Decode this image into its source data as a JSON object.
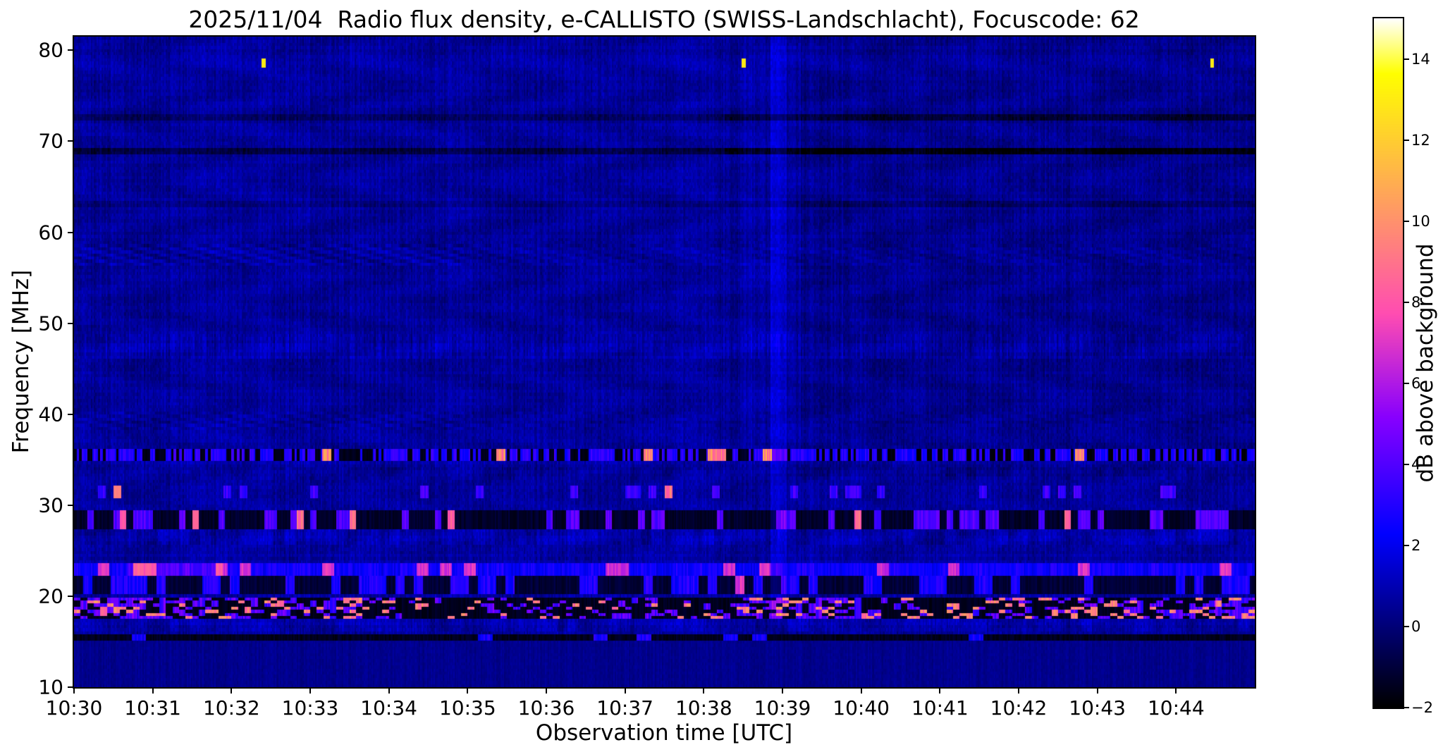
{
  "chart_data": {
    "type": "heatmap",
    "title": "2025/11/04  Radio flux density, e-CALLISTO (SWISS-Landschlacht), Focuscode: 62",
    "xlabel": "Observation time [UTC]",
    "ylabel": "Frequency [MHz]",
    "x_start": "10:30",
    "x_end": "10:45",
    "x_tick_labels": [
      "10:30",
      "10:31",
      "10:32",
      "10:33",
      "10:34",
      "10:35",
      "10:36",
      "10:37",
      "10:38",
      "10:39",
      "10:40",
      "10:41",
      "10:42",
      "10:43",
      "10:44"
    ],
    "y_ticks": [
      10,
      20,
      30,
      40,
      50,
      60,
      70,
      80
    ],
    "y_range": [
      10,
      81.5
    ],
    "grid": false,
    "colorbar": {
      "label": "dB above background",
      "ticks": [
        -2,
        0,
        2,
        4,
        6,
        8,
        10,
        12,
        14
      ],
      "tick_labels": [
        "−2",
        "0",
        "2",
        "4",
        "6",
        "8",
        "10",
        "12",
        "14"
      ],
      "vmin": -2,
      "vmax": 15,
      "colormap": "gnuplot2"
    },
    "features": {
      "background_db": 0.5,
      "bright_spots": [
        {
          "t_frac": 0.16,
          "freq_mhz": 78.6,
          "db": 13,
          "time": "10:32.4"
        },
        {
          "t_frac": 0.567,
          "freq_mhz": 78.6,
          "db": 13,
          "time": "10:38.5"
        },
        {
          "t_frac": 0.963,
          "freq_mhz": 78.6,
          "db": 13,
          "time": "10:44.4"
        }
      ],
      "dark_horizontal_lines_mhz": [
        72.6,
        68.8,
        15.5
      ],
      "vertical_streaks": [
        {
          "t0": 0.59,
          "t1": 0.603,
          "f_min": 18,
          "add": 0.9
        },
        {
          "t0": 0.565,
          "t1": 0.615,
          "f_min": 35,
          "add": 0.3
        },
        {
          "t0": 0.578,
          "t1": 1.0,
          "f_min": 33,
          "add": -0.18
        }
      ],
      "bands": [
        {
          "lo": 77.9,
          "hi": 79.3,
          "mode": "add",
          "amt": 0.15
        },
        {
          "lo": 72.3,
          "hi": 72.9,
          "mode": "darkline",
          "depth": 1.1
        },
        {
          "lo": 68.5,
          "hi": 69.15,
          "mode": "darkline",
          "depth": 1.7
        },
        {
          "lo": 62.8,
          "hi": 63.3,
          "mode": "darkline",
          "depth": 0.5
        },
        {
          "lo": 56.4,
          "hi": 58.6,
          "mode": "wave",
          "amp": 0.5
        },
        {
          "lo": 46.2,
          "hi": 48.9,
          "mode": "vstripe",
          "amp": 0.8
        },
        {
          "lo": 38.4,
          "hi": 40.3,
          "mode": "wave",
          "amp": 0.35
        },
        {
          "lo": 35.0,
          "hi": 36.05,
          "mode": "speckle",
          "darkProb": 0.42,
          "dark": -1.6,
          "lite": 2.3,
          "hotProb": 0.05,
          "hot": 8.0
        },
        {
          "lo": 32.9,
          "hi": 34.3,
          "mode": "patches",
          "amp": -0.6
        },
        {
          "lo": 30.7,
          "hi": 32.3,
          "mode": "dashes",
          "prob": 0.22,
          "lite": 2.8,
          "hotProb": 0.025,
          "hot": 8.0,
          "dlen": 6
        },
        {
          "lo": 27.3,
          "hi": 29.3,
          "mode": "darkdash",
          "base": -1.3,
          "prob": 0.3,
          "lite": 3.2,
          "hotProb": 0.055,
          "hot": 7.5,
          "dlen": 5
        },
        {
          "lo": 25.7,
          "hi": 27.2,
          "mode": "patches",
          "amp": 1.0
        },
        {
          "lo": 22.3,
          "hi": 23.7,
          "mode": "blueband",
          "base": 1.9,
          "prob": 0.15,
          "hot": 6.0,
          "dlen": 9
        },
        {
          "lo": 20.3,
          "hi": 22.2,
          "mode": "darkdash",
          "base": -1.1,
          "prob": 0.4,
          "lite": 2.0,
          "hotProb": 0.02,
          "hot": 6.0,
          "dlen": 7
        },
        {
          "lo": 17.4,
          "hi": 19.9,
          "mode": "mainband",
          "base": -1.5,
          "prob": 0.5,
          "lite": 3.4,
          "hotProb": 0.17,
          "hot": 8.0,
          "dlen": 5
        },
        {
          "lo": 16.0,
          "hi": 17.35,
          "mode": "patches",
          "amp": 0.8
        },
        {
          "lo": 15.1,
          "hi": 15.95,
          "mode": "darkdash",
          "base": -1.5,
          "prob": 0.1,
          "lite": 1.8,
          "hotProb": 0.0,
          "hot": 0,
          "dlen": 11
        }
      ]
    }
  }
}
